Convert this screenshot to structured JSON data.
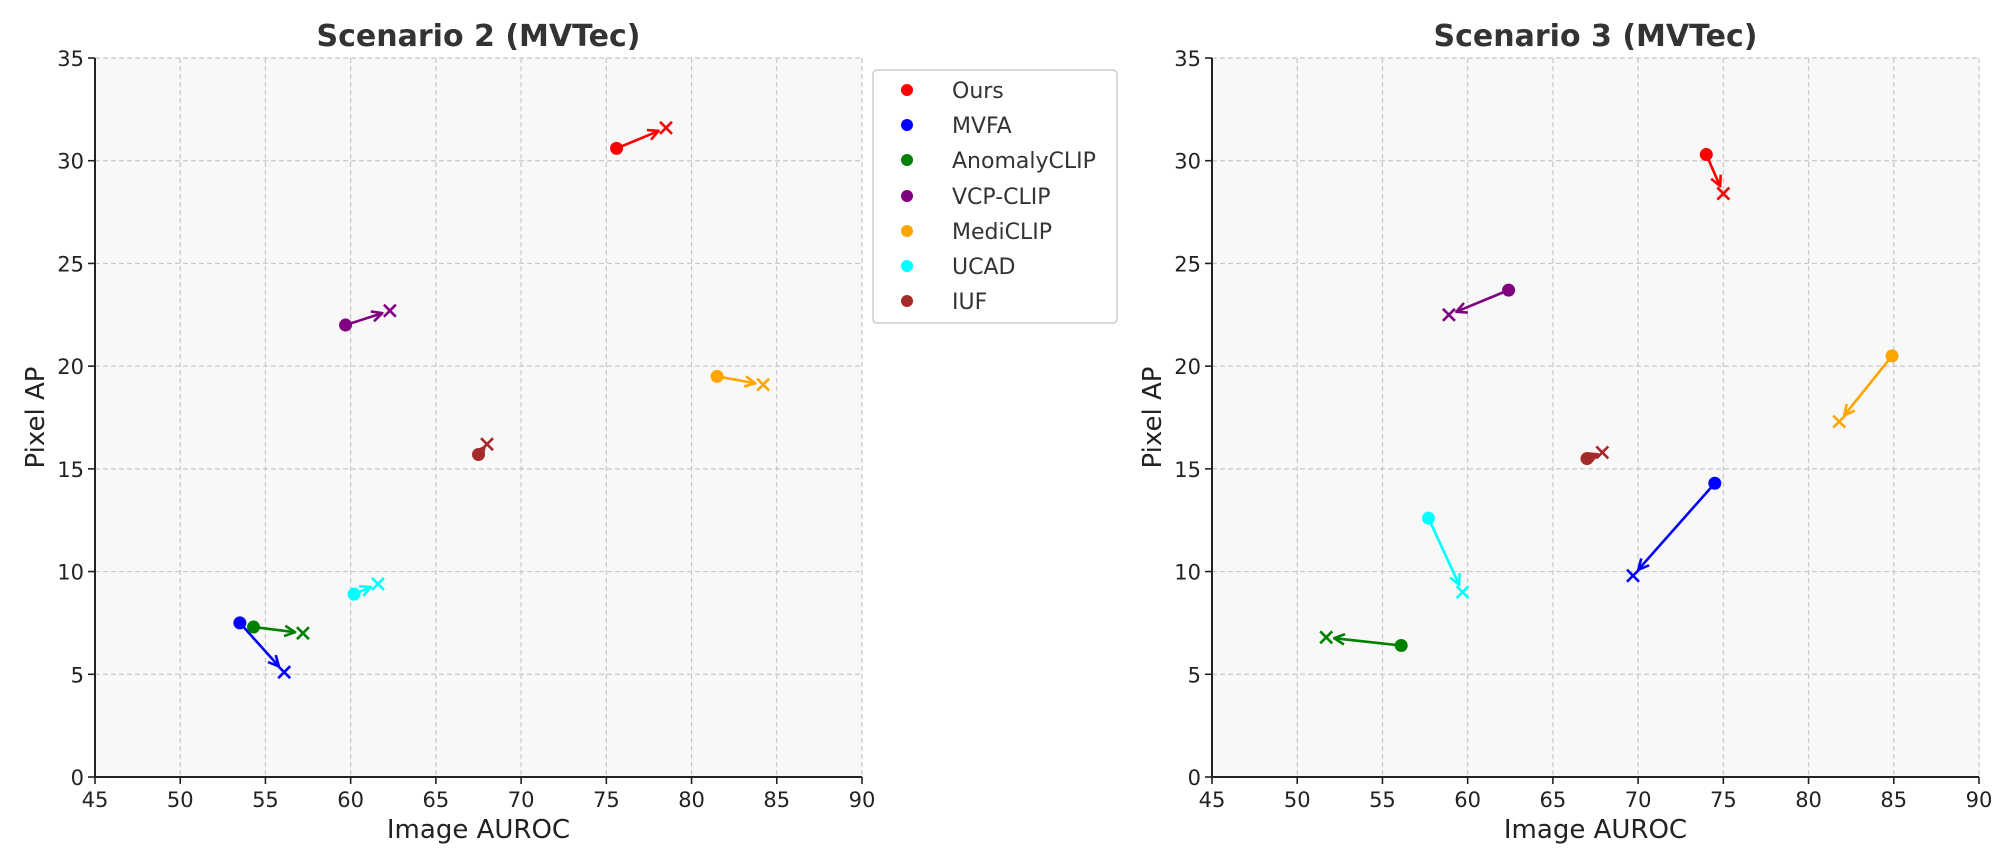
{
  "chart_data": [
    {
      "type": "scatter",
      "title": "Scenario 2 (MVTec)",
      "xlabel": "Image AUROC",
      "ylabel": "Pixel AP",
      "xlim": [
        45,
        90
      ],
      "ylim": [
        0,
        35
      ],
      "xticks": [
        "45",
        "50",
        "55",
        "60",
        "65",
        "70",
        "75",
        "80",
        "85",
        "90"
      ],
      "yticks": [
        "0",
        "5",
        "10",
        "15",
        "20",
        "25",
        "30",
        "35"
      ],
      "grid": true,
      "legend_position": "outside-right",
      "series": [
        {
          "name": "Ours",
          "color": "#ff0000",
          "start": [
            75.6,
            30.6
          ],
          "end": [
            78.5,
            31.6
          ]
        },
        {
          "name": "MVFA",
          "color": "#0000ff",
          "start": [
            53.5,
            7.5
          ],
          "end": [
            56.1,
            5.1
          ]
        },
        {
          "name": "AnomalyCLIP",
          "color": "#008000",
          "start": [
            54.3,
            7.3
          ],
          "end": [
            57.2,
            7.0
          ]
        },
        {
          "name": "VCP-CLIP",
          "color": "#800080",
          "start": [
            59.7,
            22.0
          ],
          "end": [
            62.3,
            22.7
          ]
        },
        {
          "name": "MediCLIP",
          "color": "#ffa500",
          "start": [
            81.5,
            19.5
          ],
          "end": [
            84.2,
            19.1
          ]
        },
        {
          "name": "UCAD",
          "color": "#00ffff",
          "start": [
            60.2,
            8.9
          ],
          "end": [
            61.6,
            9.4
          ]
        },
        {
          "name": "IUF",
          "color": "#a52a2a",
          "start": [
            67.5,
            15.7
          ],
          "end": [
            68.0,
            16.2
          ]
        }
      ]
    },
    {
      "type": "scatter",
      "title": "Scenario 3 (MVTec)",
      "xlabel": "Image AUROC",
      "ylabel": "Pixel AP",
      "xlim": [
        45,
        90
      ],
      "ylim": [
        0,
        35
      ],
      "xticks": [
        "45",
        "50",
        "55",
        "60",
        "65",
        "70",
        "75",
        "80",
        "85",
        "90"
      ],
      "yticks": [
        "0",
        "5",
        "10",
        "15",
        "20",
        "25",
        "30",
        "35"
      ],
      "grid": true,
      "series": [
        {
          "name": "Ours",
          "color": "#ff0000",
          "start": [
            74.0,
            30.3
          ],
          "end": [
            75.0,
            28.4
          ]
        },
        {
          "name": "MVFA",
          "color": "#0000ff",
          "start": [
            74.5,
            14.3
          ],
          "end": [
            69.7,
            9.8
          ]
        },
        {
          "name": "AnomalyCLIP",
          "color": "#008000",
          "start": [
            56.1,
            6.4
          ],
          "end": [
            51.7,
            6.8
          ]
        },
        {
          "name": "VCP-CLIP",
          "color": "#800080",
          "start": [
            62.4,
            23.7
          ],
          "end": [
            58.9,
            22.5
          ]
        },
        {
          "name": "MediCLIP",
          "color": "#ffa500",
          "start": [
            84.9,
            20.5
          ],
          "end": [
            81.8,
            17.3
          ]
        },
        {
          "name": "UCAD",
          "color": "#00ffff",
          "start": [
            57.7,
            12.6
          ],
          "end": [
            59.7,
            9.0
          ]
        },
        {
          "name": "IUF",
          "color": "#a52a2a",
          "start": [
            67.0,
            15.5
          ],
          "end": [
            67.9,
            15.8
          ]
        }
      ]
    }
  ],
  "legend": {
    "items": [
      {
        "label": "Ours",
        "color": "#ff0000"
      },
      {
        "label": "MVFA",
        "color": "#0000ff"
      },
      {
        "label": "AnomalyCLIP",
        "color": "#008000"
      },
      {
        "label": "VCP-CLIP",
        "color": "#800080"
      },
      {
        "label": "MediCLIP",
        "color": "#ffa500"
      },
      {
        "label": "UCAD",
        "color": "#00ffff"
      },
      {
        "label": "IUF",
        "color": "#a52a2a"
      }
    ]
  },
  "style": {
    "plot_bg": "#f8f8f8",
    "grid_color": "#c8c8c8",
    "axis_color": "#222222"
  }
}
